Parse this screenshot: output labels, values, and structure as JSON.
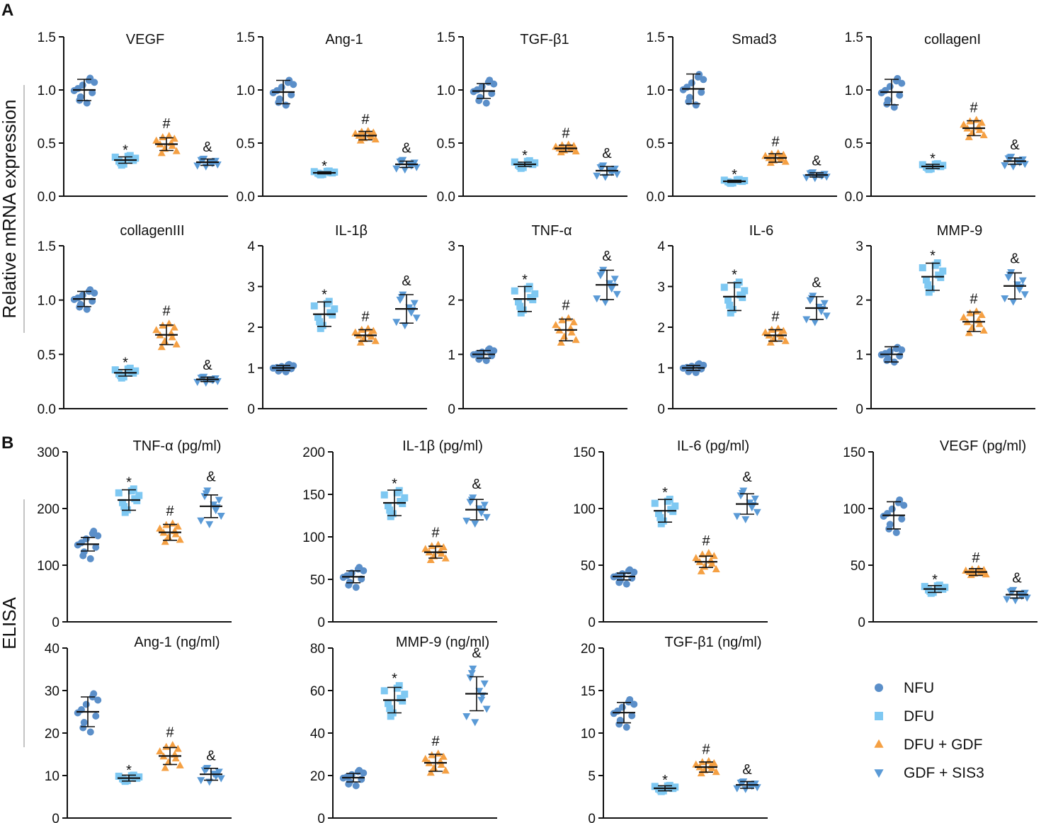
{
  "panels": {
    "a": "A",
    "b": "B"
  },
  "side_labels": {
    "mrna": "Relative mRNA expression",
    "elisa": "ELISA"
  },
  "colors": {
    "NFU": "#5b8fc9",
    "DFU": "#7ec8f2",
    "DFU + GDF": "#f5a043",
    "GDF + SIS3": "#5a9ad6",
    "axis": "#111111"
  },
  "legend": [
    {
      "label": "NFU",
      "marker": "circle"
    },
    {
      "label": "DFU",
      "marker": "square"
    },
    {
      "label": "DFU + GDF",
      "marker": "triangle-up"
    },
    {
      "label": "GDF + SIS3",
      "marker": "triangle-down"
    }
  ],
  "chart_data": [
    {
      "type": "scatter",
      "section": "A",
      "title": "VEGF",
      "ylim": [
        0,
        1.5
      ],
      "yticks": [
        "0.0",
        "0.5",
        "1.0",
        "1.5"
      ],
      "groups": [
        "NFU",
        "DFU",
        "DFU + GDF",
        "GDF + SIS3"
      ],
      "means": [
        1.0,
        0.34,
        0.49,
        0.32
      ],
      "sd": [
        0.1,
        0.03,
        0.06,
        0.03
      ],
      "spread": [
        0.13,
        0.05,
        0.09,
        0.04
      ],
      "sig": [
        "",
        "*",
        "#",
        "&"
      ]
    },
    {
      "type": "scatter",
      "section": "A",
      "title": "Ang-1",
      "ylim": [
        0,
        1.5
      ],
      "yticks": [
        "0.0",
        "0.5",
        "1.0",
        "1.5"
      ],
      "groups": [
        "NFU",
        "DFU",
        "DFU + GDF",
        "GDF + SIS3"
      ],
      "means": [
        0.98,
        0.22,
        0.57,
        0.3
      ],
      "sd": [
        0.11,
        0.01,
        0.04,
        0.03
      ],
      "spread": [
        0.13,
        0.02,
        0.05,
        0.05
      ],
      "sig": [
        "",
        "*",
        "#",
        "&"
      ]
    },
    {
      "type": "scatter",
      "section": "A",
      "title": "TGF-β1",
      "ylim": [
        0,
        1.5
      ],
      "yticks": [
        "0.0",
        "0.5",
        "1.0",
        "1.5"
      ],
      "groups": [
        "NFU",
        "DFU",
        "DFU + GDF",
        "GDF + SIS3"
      ],
      "means": [
        0.99,
        0.3,
        0.45,
        0.24
      ],
      "sd": [
        0.07,
        0.02,
        0.03,
        0.04
      ],
      "spread": [
        0.12,
        0.04,
        0.04,
        0.06
      ],
      "sig": [
        "",
        "*",
        "#",
        "&"
      ]
    },
    {
      "type": "scatter",
      "section": "A",
      "title": "Smad3",
      "ylim": [
        0,
        1.5
      ],
      "yticks": [
        "0.0",
        "0.5",
        "1.0",
        "1.5"
      ],
      "groups": [
        "NFU",
        "DFU",
        "DFU + GDF",
        "GDF + SIS3"
      ],
      "means": [
        1.01,
        0.14,
        0.36,
        0.2
      ],
      "sd": [
        0.14,
        0.01,
        0.04,
        0.02
      ],
      "spread": [
        0.16,
        0.02,
        0.05,
        0.03
      ],
      "sig": [
        "",
        "*",
        "#",
        "&"
      ]
    },
    {
      "type": "scatter",
      "section": "A",
      "title": "collagenI",
      "ylim": [
        0,
        1.5
      ],
      "yticks": [
        "0.0",
        "0.5",
        "1.0",
        "1.5"
      ],
      "groups": [
        "NFU",
        "DFU",
        "DFU + GDF",
        "GDF + SIS3"
      ],
      "means": [
        0.98,
        0.28,
        0.64,
        0.33
      ],
      "sd": [
        0.12,
        0.02,
        0.07,
        0.03
      ],
      "spread": [
        0.15,
        0.03,
        0.09,
        0.05
      ],
      "sig": [
        "",
        "*",
        "#",
        "&"
      ]
    },
    {
      "type": "scatter",
      "section": "A",
      "title": "collagenIII",
      "ylim": [
        0,
        1.5
      ],
      "yticks": [
        "0.0",
        "0.5",
        "1.0",
        "1.5"
      ],
      "groups": [
        "NFU",
        "DFU",
        "DFU + GDF",
        "GDF + SIS3"
      ],
      "means": [
        1.01,
        0.33,
        0.68,
        0.27
      ],
      "sd": [
        0.07,
        0.03,
        0.09,
        0.02
      ],
      "spread": [
        0.1,
        0.05,
        0.12,
        0.03
      ],
      "sig": [
        "",
        "*",
        "#",
        "&"
      ]
    },
    {
      "type": "scatter",
      "section": "A",
      "title": "IL-1β",
      "ylim": [
        0,
        4
      ],
      "yticks": [
        "0",
        "1",
        "2",
        "3",
        "4"
      ],
      "groups": [
        "NFU",
        "DFU",
        "DFU + GDF",
        "GDF + SIS3"
      ],
      "means": [
        1.0,
        2.32,
        1.8,
        2.45
      ],
      "sd": [
        0.06,
        0.3,
        0.14,
        0.35
      ],
      "spread": [
        0.1,
        0.37,
        0.19,
        0.42
      ],
      "sig": [
        "",
        "*",
        "#",
        "&"
      ]
    },
    {
      "type": "scatter",
      "section": "A",
      "title": "TNF-α",
      "ylim": [
        0,
        3
      ],
      "yticks": [
        "0",
        "1",
        "2",
        "3"
      ],
      "groups": [
        "NFU",
        "DFU",
        "DFU + GDF",
        "GDF + SIS3"
      ],
      "means": [
        1.0,
        2.02,
        1.45,
        2.28
      ],
      "sd": [
        0.07,
        0.23,
        0.2,
        0.27
      ],
      "spread": [
        0.12,
        0.27,
        0.25,
        0.33
      ],
      "sig": [
        "",
        "*",
        "#",
        "&"
      ]
    },
    {
      "type": "scatter",
      "section": "A",
      "title": "IL-6",
      "ylim": [
        0,
        4
      ],
      "yticks": [
        "0",
        "1",
        "2",
        "3",
        "4"
      ],
      "groups": [
        "NFU",
        "DFU",
        "DFU + GDF",
        "GDF + SIS3"
      ],
      "means": [
        1.0,
        2.75,
        1.8,
        2.47
      ],
      "sd": [
        0.06,
        0.34,
        0.14,
        0.28
      ],
      "spread": [
        0.12,
        0.42,
        0.19,
        0.36
      ],
      "sig": [
        "",
        "*",
        "#",
        "&"
      ]
    },
    {
      "type": "scatter",
      "section": "A",
      "title": "MMP-9",
      "ylim": [
        0,
        3
      ],
      "yticks": [
        "0",
        "1",
        "2",
        "3"
      ],
      "groups": [
        "NFU",
        "DFU",
        "DFU + GDF",
        "GDF + SIS3"
      ],
      "means": [
        1.0,
        2.43,
        1.6,
        2.26
      ],
      "sd": [
        0.14,
        0.25,
        0.18,
        0.24
      ],
      "spread": [
        0.15,
        0.3,
        0.22,
        0.3
      ],
      "sig": [
        "",
        "*",
        "#",
        "&"
      ]
    },
    {
      "type": "scatter",
      "section": "B",
      "title": "TNF-α (pg/ml)",
      "ylim": [
        0,
        300
      ],
      "yticks": [
        "0",
        "100",
        "200",
        "300"
      ],
      "groups": [
        "NFU",
        "DFU",
        "DFU + GDF",
        "GDF + SIS3"
      ],
      "means": [
        137,
        215,
        158,
        204
      ],
      "sd": [
        12,
        18,
        14,
        20
      ],
      "spread": [
        27,
        23,
        18,
        33
      ],
      "sig": [
        "",
        "*",
        "#",
        "&"
      ]
    },
    {
      "type": "scatter",
      "section": "B",
      "title": "IL-1β (pg/ml)",
      "ylim": [
        0,
        200
      ],
      "yticks": [
        "0",
        "50",
        "100",
        "150",
        "200"
      ],
      "groups": [
        "NFU",
        "DFU",
        "DFU + GDF",
        "GDF + SIS3"
      ],
      "means": [
        53,
        140,
        82,
        132
      ],
      "sd": [
        7,
        15,
        7,
        12
      ],
      "spread": [
        13,
        17,
        10,
        17
      ],
      "sig": [
        "",
        "*",
        "#",
        "&"
      ]
    },
    {
      "type": "scatter",
      "section": "B",
      "title": "IL-6 (pg/ml)",
      "ylim": [
        0,
        150
      ],
      "yticks": [
        "0",
        "50",
        "100",
        "150"
      ],
      "groups": [
        "NFU",
        "DFU",
        "DFU + GDF",
        "GDF + SIS3"
      ],
      "means": [
        40,
        98,
        53,
        104
      ],
      "sd": [
        3,
        10,
        5,
        9
      ],
      "spread": [
        7,
        12,
        9,
        14
      ],
      "sig": [
        "",
        "*",
        "#",
        "&"
      ]
    },
    {
      "type": "scatter",
      "section": "B",
      "title": "VEGF (pg/ml)",
      "ylim": [
        0,
        150
      ],
      "yticks": [
        "0",
        "50",
        "100",
        "150"
      ],
      "groups": [
        "NFU",
        "DFU",
        "DFU + GDF",
        "GDF + SIS3"
      ],
      "means": [
        94,
        29,
        44,
        24
      ],
      "sd": [
        12,
        3,
        3,
        3
      ],
      "spread": [
        16,
        4,
        3,
        5
      ],
      "sig": [
        "",
        "*",
        "#",
        "&"
      ]
    },
    {
      "type": "scatter",
      "section": "B",
      "title": "Ang-1 (ng/ml)",
      "ylim": [
        0,
        40
      ],
      "yticks": [
        "0",
        "10",
        "20",
        "30",
        "40"
      ],
      "groups": [
        "NFU",
        "DFU",
        "DFU + GDF",
        "GDF + SIS3"
      ],
      "means": [
        25,
        9.4,
        14.6,
        10.3
      ],
      "sd": [
        3.5,
        0.7,
        2,
        1.4
      ],
      "spread": [
        5,
        0.8,
        3,
        1.8
      ],
      "sig": [
        "",
        "*",
        "#",
        "&"
      ]
    },
    {
      "type": "scatter",
      "section": "B",
      "title": "MMP-9 (ng/ml)",
      "ylim": [
        0,
        80
      ],
      "yticks": [
        "0",
        "20",
        "40",
        "60",
        "80"
      ],
      "groups": [
        "NFU",
        "DFU",
        "DFU + GDF",
        "GDF + SIS3"
      ],
      "means": [
        19,
        55.5,
        26,
        58.5
      ],
      "sd": [
        2,
        6,
        4,
        8
      ],
      "spread": [
        4,
        8,
        5,
        14
      ],
      "sig": [
        "",
        "*",
        "#",
        "&"
      ]
    },
    {
      "type": "scatter",
      "section": "B",
      "title": "TGF-β1 (ng/ml)",
      "ylim": [
        0,
        20
      ],
      "yticks": [
        "0",
        "5",
        "10",
        "15",
        "20"
      ],
      "groups": [
        "NFU",
        "DFU",
        "DFU + GDF",
        "GDF + SIS3"
      ],
      "means": [
        12.4,
        3.5,
        6.0,
        3.9
      ],
      "sd": [
        1.2,
        0.3,
        0.6,
        0.4
      ],
      "spread": [
        1.8,
        0.4,
        0.8,
        0.5
      ],
      "sig": [
        "",
        "*",
        "#",
        "&"
      ]
    }
  ]
}
